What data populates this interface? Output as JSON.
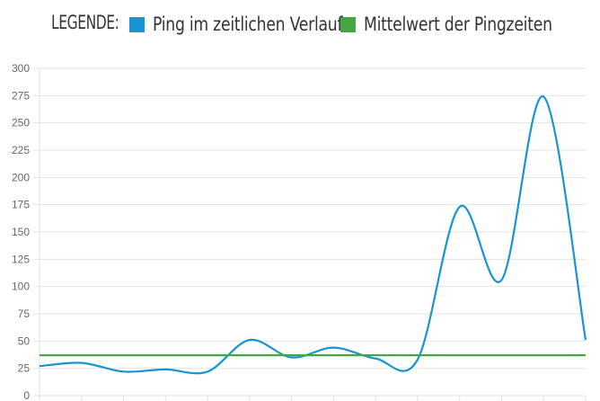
{
  "legend": {
    "title": "LEGENDE:",
    "entries": [
      {
        "label": "Ping im zeitlichen Verlauf",
        "color": "#1a93d4"
      },
      {
        "label": "Mittelwert der Pingzeiten",
        "color": "#43a843"
      }
    ]
  },
  "chart_data": {
    "type": "line",
    "title": "",
    "xlabel": "",
    "ylabel": "",
    "ylim": [
      0,
      300
    ],
    "yticks": [
      0,
      25,
      50,
      75,
      100,
      125,
      150,
      175,
      200,
      225,
      250,
      275,
      300
    ],
    "grid": true,
    "legend_position": "top",
    "series": [
      {
        "name": "Ping im zeitlichen Verlauf",
        "color": "#1a93d4",
        "values": [
          27,
          30,
          22,
          24,
          22,
          51,
          35,
          44,
          34,
          33,
          173,
          106,
          274,
          51
        ]
      },
      {
        "name": "Mittelwert der Pingzeiten",
        "color": "#43a843",
        "values": [
          37,
          37,
          37,
          37,
          37,
          37,
          37,
          37,
          37,
          37,
          37,
          37,
          37,
          37
        ]
      }
    ]
  }
}
